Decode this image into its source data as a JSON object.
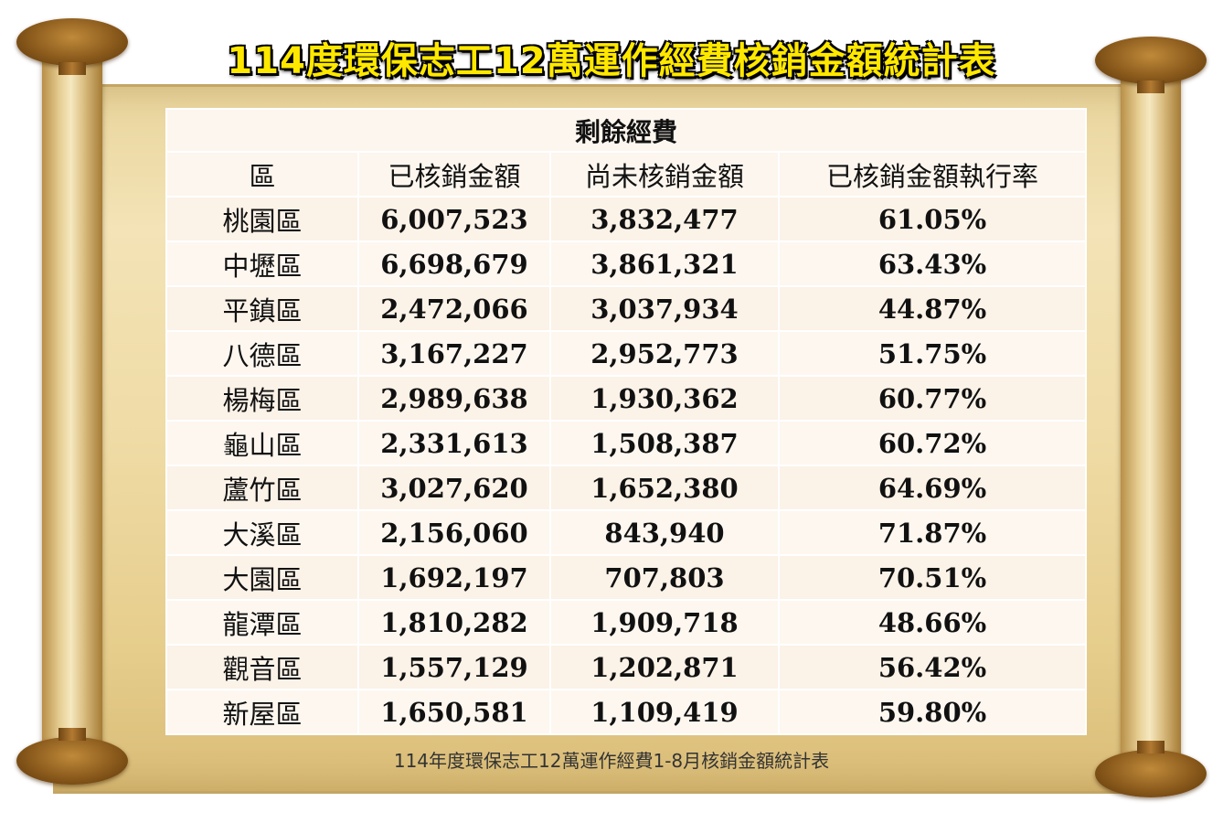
{
  "title": "114度環保志工12萬運作經費核銷金額統計表",
  "caption": "114年度環保志工12萬運作經費1-8月核銷金額統計表",
  "table": {
    "group_header": "剩餘經費",
    "columns": [
      "區",
      "已核銷金額",
      "尚未核銷金額",
      "已核銷金額執行率"
    ],
    "rows": [
      [
        "桃園區",
        "6,007,523",
        "3,832,477",
        "61.05%"
      ],
      [
        "中壢區",
        "6,698,679",
        "3,861,321",
        "63.43%"
      ],
      [
        "平鎮區",
        "2,472,066",
        "3,037,934",
        "44.87%"
      ],
      [
        "八德區",
        "3,167,227",
        "2,952,773",
        "51.75%"
      ],
      [
        "楊梅區",
        "2,989,638",
        "1,930,362",
        "60.77%"
      ],
      [
        "龜山區",
        "2,331,613",
        "1,508,387",
        "60.72%"
      ],
      [
        "蘆竹區",
        "3,027,620",
        "1,652,380",
        "64.69%"
      ],
      [
        "大溪區",
        "2,156,060",
        "843,940",
        "71.87%"
      ],
      [
        "大園區",
        "1,692,197",
        "707,803",
        "70.51%"
      ],
      [
        "龍潭區",
        "1,810,282",
        "1,909,718",
        "48.66%"
      ],
      [
        "觀音區",
        "1,557,129",
        "1,202,871",
        "56.42%"
      ],
      [
        "新屋區",
        "1,650,581",
        "1,109,419",
        "59.80%"
      ]
    ]
  },
  "chart_data": {
    "type": "table",
    "title": "114度環保志工12萬運作經費核銷金額統計表",
    "columns": [
      "區",
      "已核銷金額",
      "尚未核銷金額",
      "已核銷金額執行率"
    ],
    "categories": [
      "桃園區",
      "中壢區",
      "平鎮區",
      "八德區",
      "楊梅區",
      "龜山區",
      "蘆竹區",
      "大溪區",
      "大園區",
      "龍潭區",
      "觀音區",
      "新屋區"
    ],
    "series": [
      {
        "name": "已核銷金額",
        "values": [
          6007523,
          6698679,
          2472066,
          3167227,
          2989638,
          2331613,
          3027620,
          2156060,
          1692197,
          1810282,
          1557129,
          1650581
        ]
      },
      {
        "name": "尚未核銷金額",
        "values": [
          3832477,
          3861321,
          3037934,
          2952773,
          1930362,
          1508387,
          1652380,
          843940,
          707803,
          1909718,
          1202871,
          1109419
        ]
      },
      {
        "name": "已核銷金額執行率",
        "values": [
          61.05,
          63.43,
          44.87,
          51.75,
          60.77,
          60.72,
          64.69,
          71.87,
          70.51,
          48.66,
          56.42,
          59.8
        ]
      }
    ]
  },
  "colors": {
    "title": "#ffe800",
    "paper": "#efdba5",
    "table_background": "#fdf6ee"
  }
}
